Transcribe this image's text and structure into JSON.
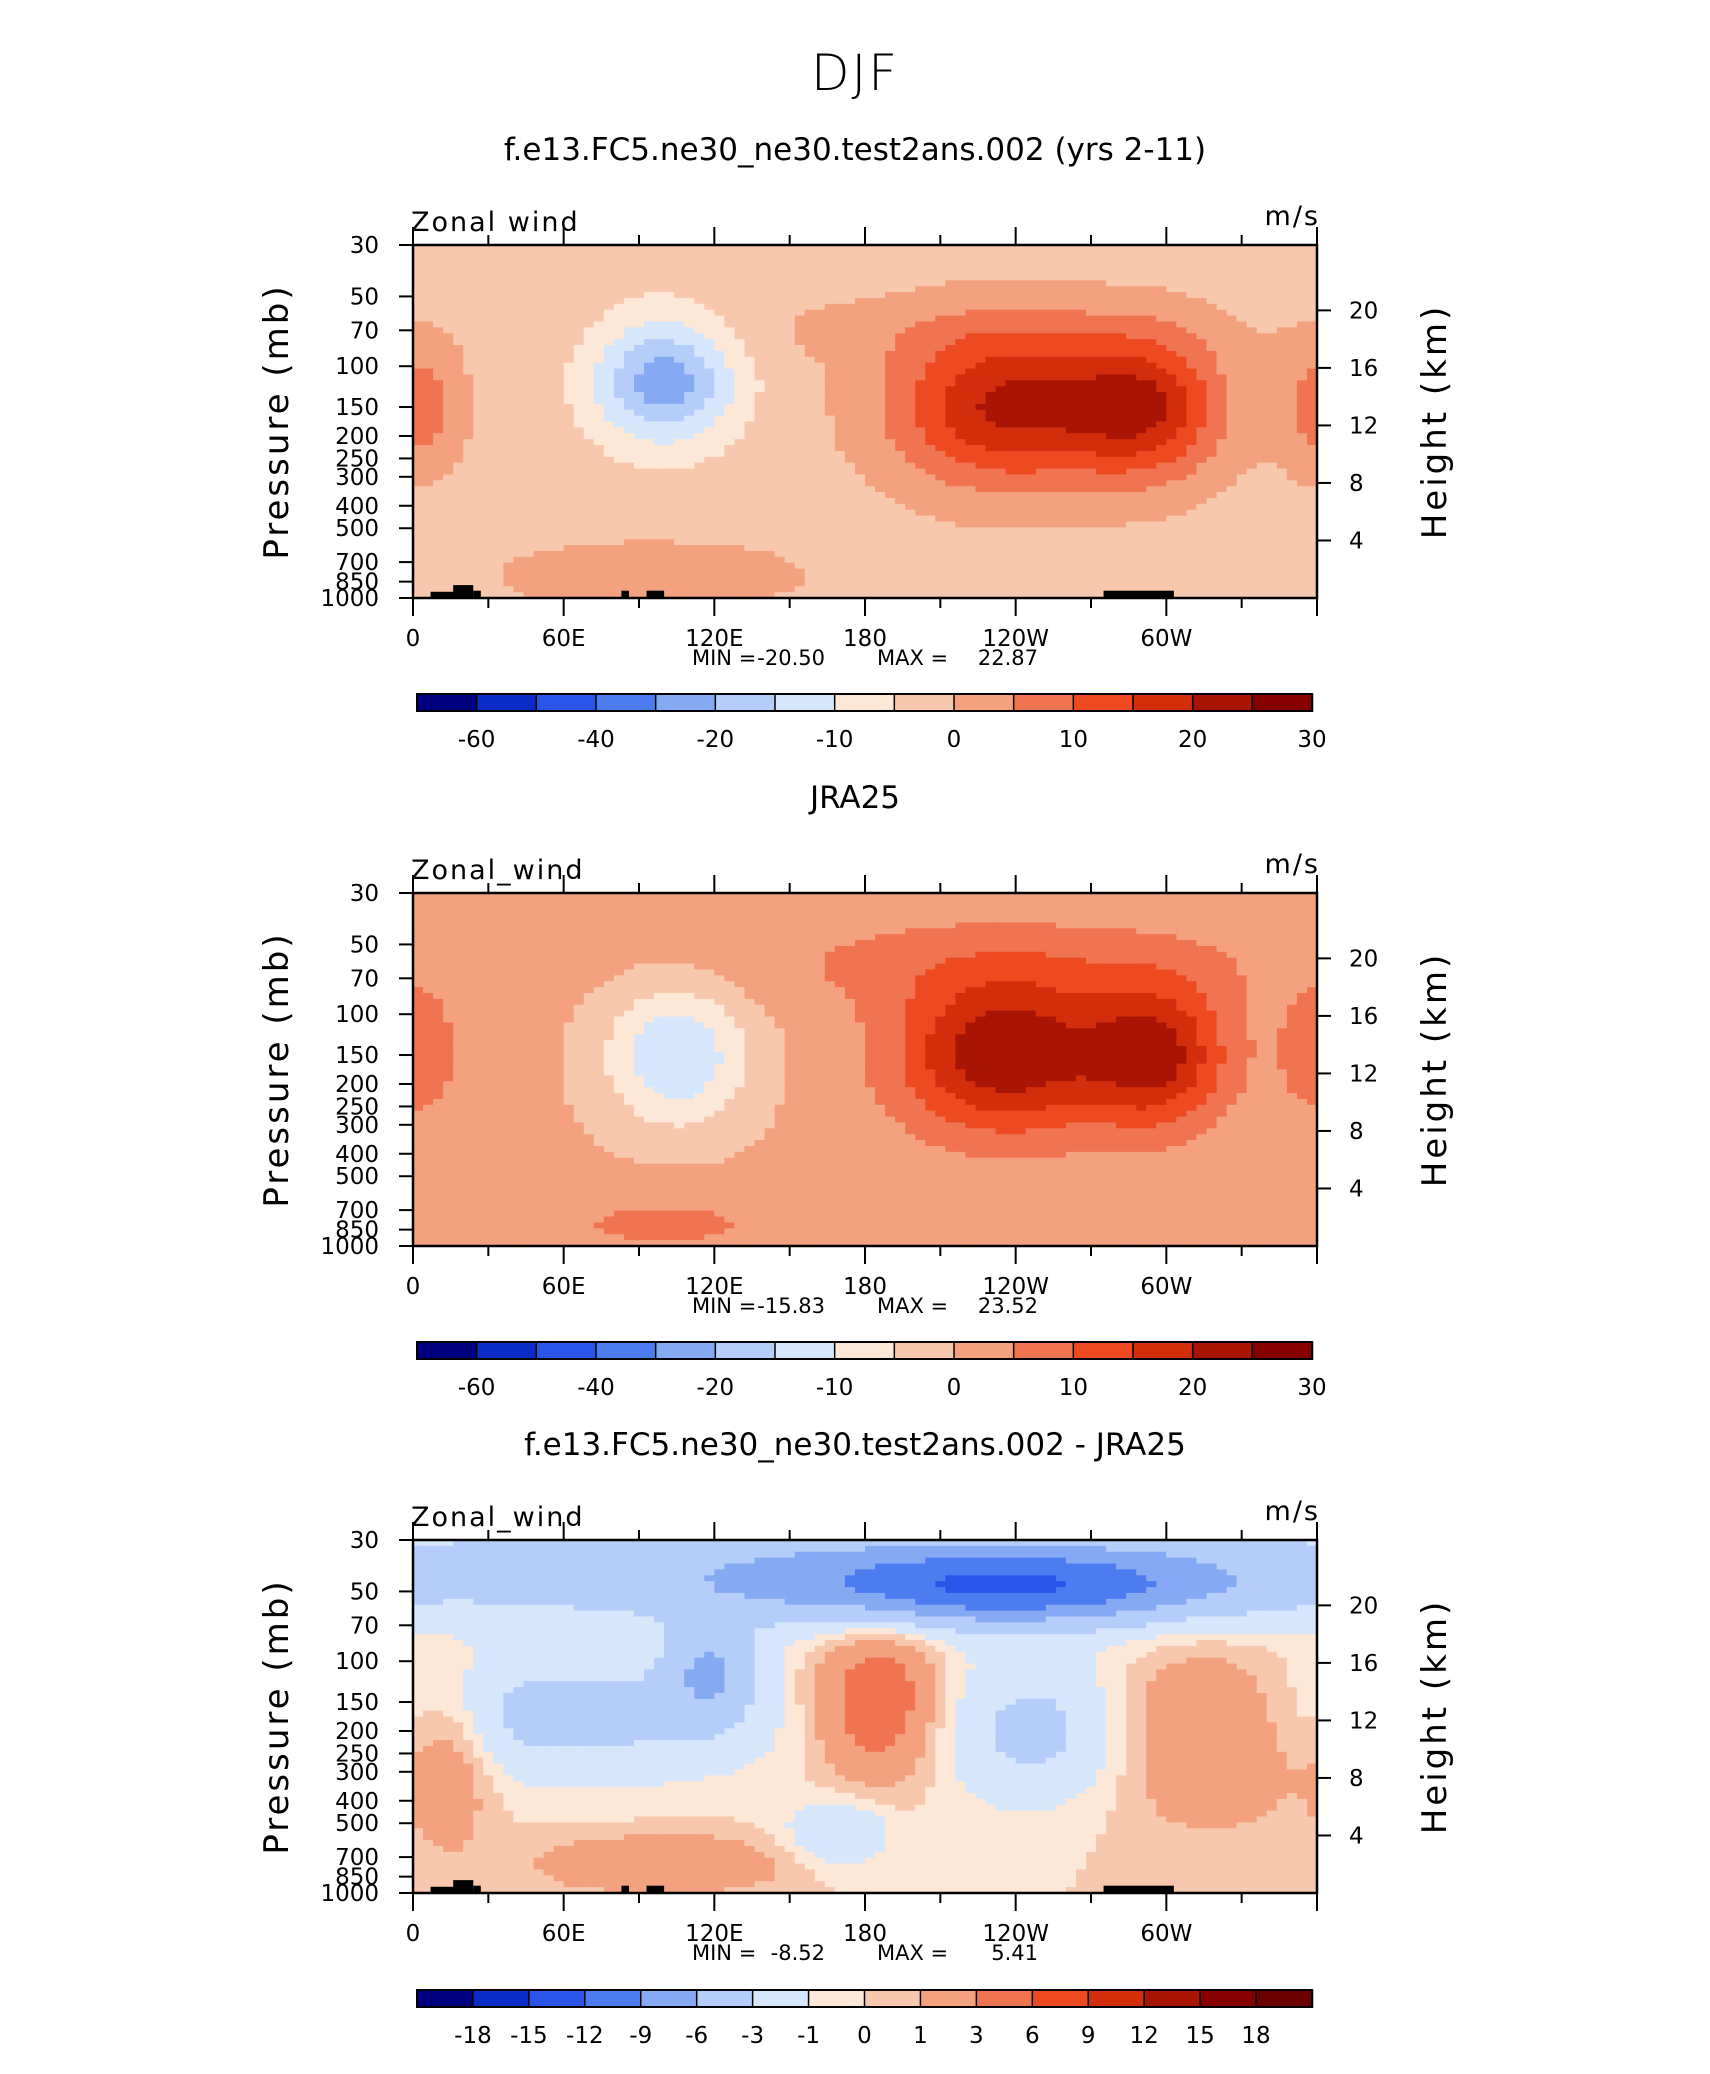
{
  "figure_title": "DJF",
  "chart_data": [
    {
      "type": "heatmap",
      "title": "f.e13.FC5.ne30_ne30.test2ans.002 (yrs 2-11)",
      "subtitle_left": "Zonal wind",
      "units": "m/s",
      "ylabel": "Pressure (mb)",
      "ylabel_right": "Height (km)",
      "x_ticks": [
        "0",
        "60E",
        "120E",
        "180",
        "120W",
        "60W"
      ],
      "y_ticks": [
        "30",
        "50",
        "70",
        "100",
        "150",
        "200",
        "250",
        "300",
        "400",
        "500",
        "700",
        "850",
        "1000"
      ],
      "y_ticks_right": [
        "20",
        "16",
        "12",
        "8",
        "4"
      ],
      "stats": {
        "min_label": "MIN =",
        "min": "-20.50",
        "max_label": "MAX =",
        "max": "22.87"
      },
      "colorbar_ticks": [
        "-60",
        "-40",
        "-20",
        "-10",
        "0",
        "10",
        "20",
        "30"
      ],
      "features": [
        {
          "kind": "jet",
          "lon": 235,
          "p": 150,
          "peak": 22.87
        },
        {
          "kind": "jet",
          "lon": 290,
          "p": 150,
          "peak": 20
        },
        {
          "kind": "easterly",
          "lon": 100,
          "p": 120,
          "peak": -20.5
        }
      ]
    },
    {
      "type": "heatmap",
      "title": "JRA25",
      "subtitle_left": "Zonal_wind",
      "units": "m/s",
      "ylabel": "Pressure (mb)",
      "ylabel_right": "Height (km)",
      "x_ticks": [
        "0",
        "60E",
        "120E",
        "180",
        "120W",
        "60W"
      ],
      "y_ticks": [
        "30",
        "50",
        "70",
        "100",
        "150",
        "200",
        "250",
        "300",
        "400",
        "500",
        "700",
        "850",
        "1000"
      ],
      "y_ticks_right": [
        "20",
        "16",
        "12",
        "8",
        "4"
      ],
      "stats": {
        "min_label": "MIN =",
        "min": "-15.83",
        "max_label": "MAX =",
        "max": "23.52"
      },
      "colorbar_ticks": [
        "-60",
        "-40",
        "-20",
        "-10",
        "0",
        "10",
        "20",
        "30"
      ],
      "features": [
        {
          "kind": "jet",
          "lon": 235,
          "p": 150,
          "peak": 23.52
        },
        {
          "kind": "jet",
          "lon": 295,
          "p": 150,
          "peak": 20
        },
        {
          "kind": "easterly",
          "lon": 105,
          "p": 150,
          "peak": -15.83
        }
      ]
    },
    {
      "type": "heatmap",
      "title": "f.e13.FC5.ne30_ne30.test2ans.002 - JRA25",
      "subtitle_left": "Zonal_wind",
      "units": "m/s",
      "ylabel": "Pressure (mb)",
      "ylabel_right": "Height (km)",
      "x_ticks": [
        "0",
        "60E",
        "120E",
        "180",
        "120W",
        "60W"
      ],
      "y_ticks": [
        "30",
        "50",
        "70",
        "100",
        "150",
        "200",
        "250",
        "300",
        "400",
        "500",
        "700",
        "850",
        "1000"
      ],
      "y_ticks_right": [
        "20",
        "16",
        "12",
        "8",
        "4"
      ],
      "stats": {
        "min_label": "MIN =",
        "min": "-8.52",
        "max_label": "MAX =",
        "max": "5.41"
      },
      "colorbar_ticks": [
        "-18",
        "-15",
        "-12",
        "-9",
        "-6",
        "-3",
        "-1",
        "0",
        "1",
        "3",
        "6",
        "9",
        "12",
        "15",
        "18"
      ],
      "features": [
        {
          "kind": "band",
          "lon": 230,
          "p": 50,
          "peak": -8.52
        },
        {
          "kind": "positive",
          "lon": 185,
          "p": 150,
          "peak": 5.41
        },
        {
          "kind": "positive",
          "lon": 310,
          "p": 200,
          "peak": 4
        }
      ]
    }
  ],
  "colorbar_colors": [
    "#00007f",
    "#0b2cc6",
    "#2a55e8",
    "#4d7cf0",
    "#86a9f4",
    "#b5cdf9",
    "#d6e6fb",
    "#fde8d8",
    "#f8c8ae",
    "#f4a17f",
    "#f07450",
    "#ee4a21",
    "#d22e0c",
    "#a91504",
    "#870000"
  ],
  "colorbar_colors_diff": [
    "#00007f",
    "#0b2cc6",
    "#2a55e8",
    "#4d7cf0",
    "#86a9f4",
    "#b5cdf9",
    "#d6e6fb",
    "#fde8d8",
    "#f8c8ae",
    "#f4a17f",
    "#f07450",
    "#ee4a21",
    "#d22e0c",
    "#a91504",
    "#870000",
    "#6a0000"
  ]
}
